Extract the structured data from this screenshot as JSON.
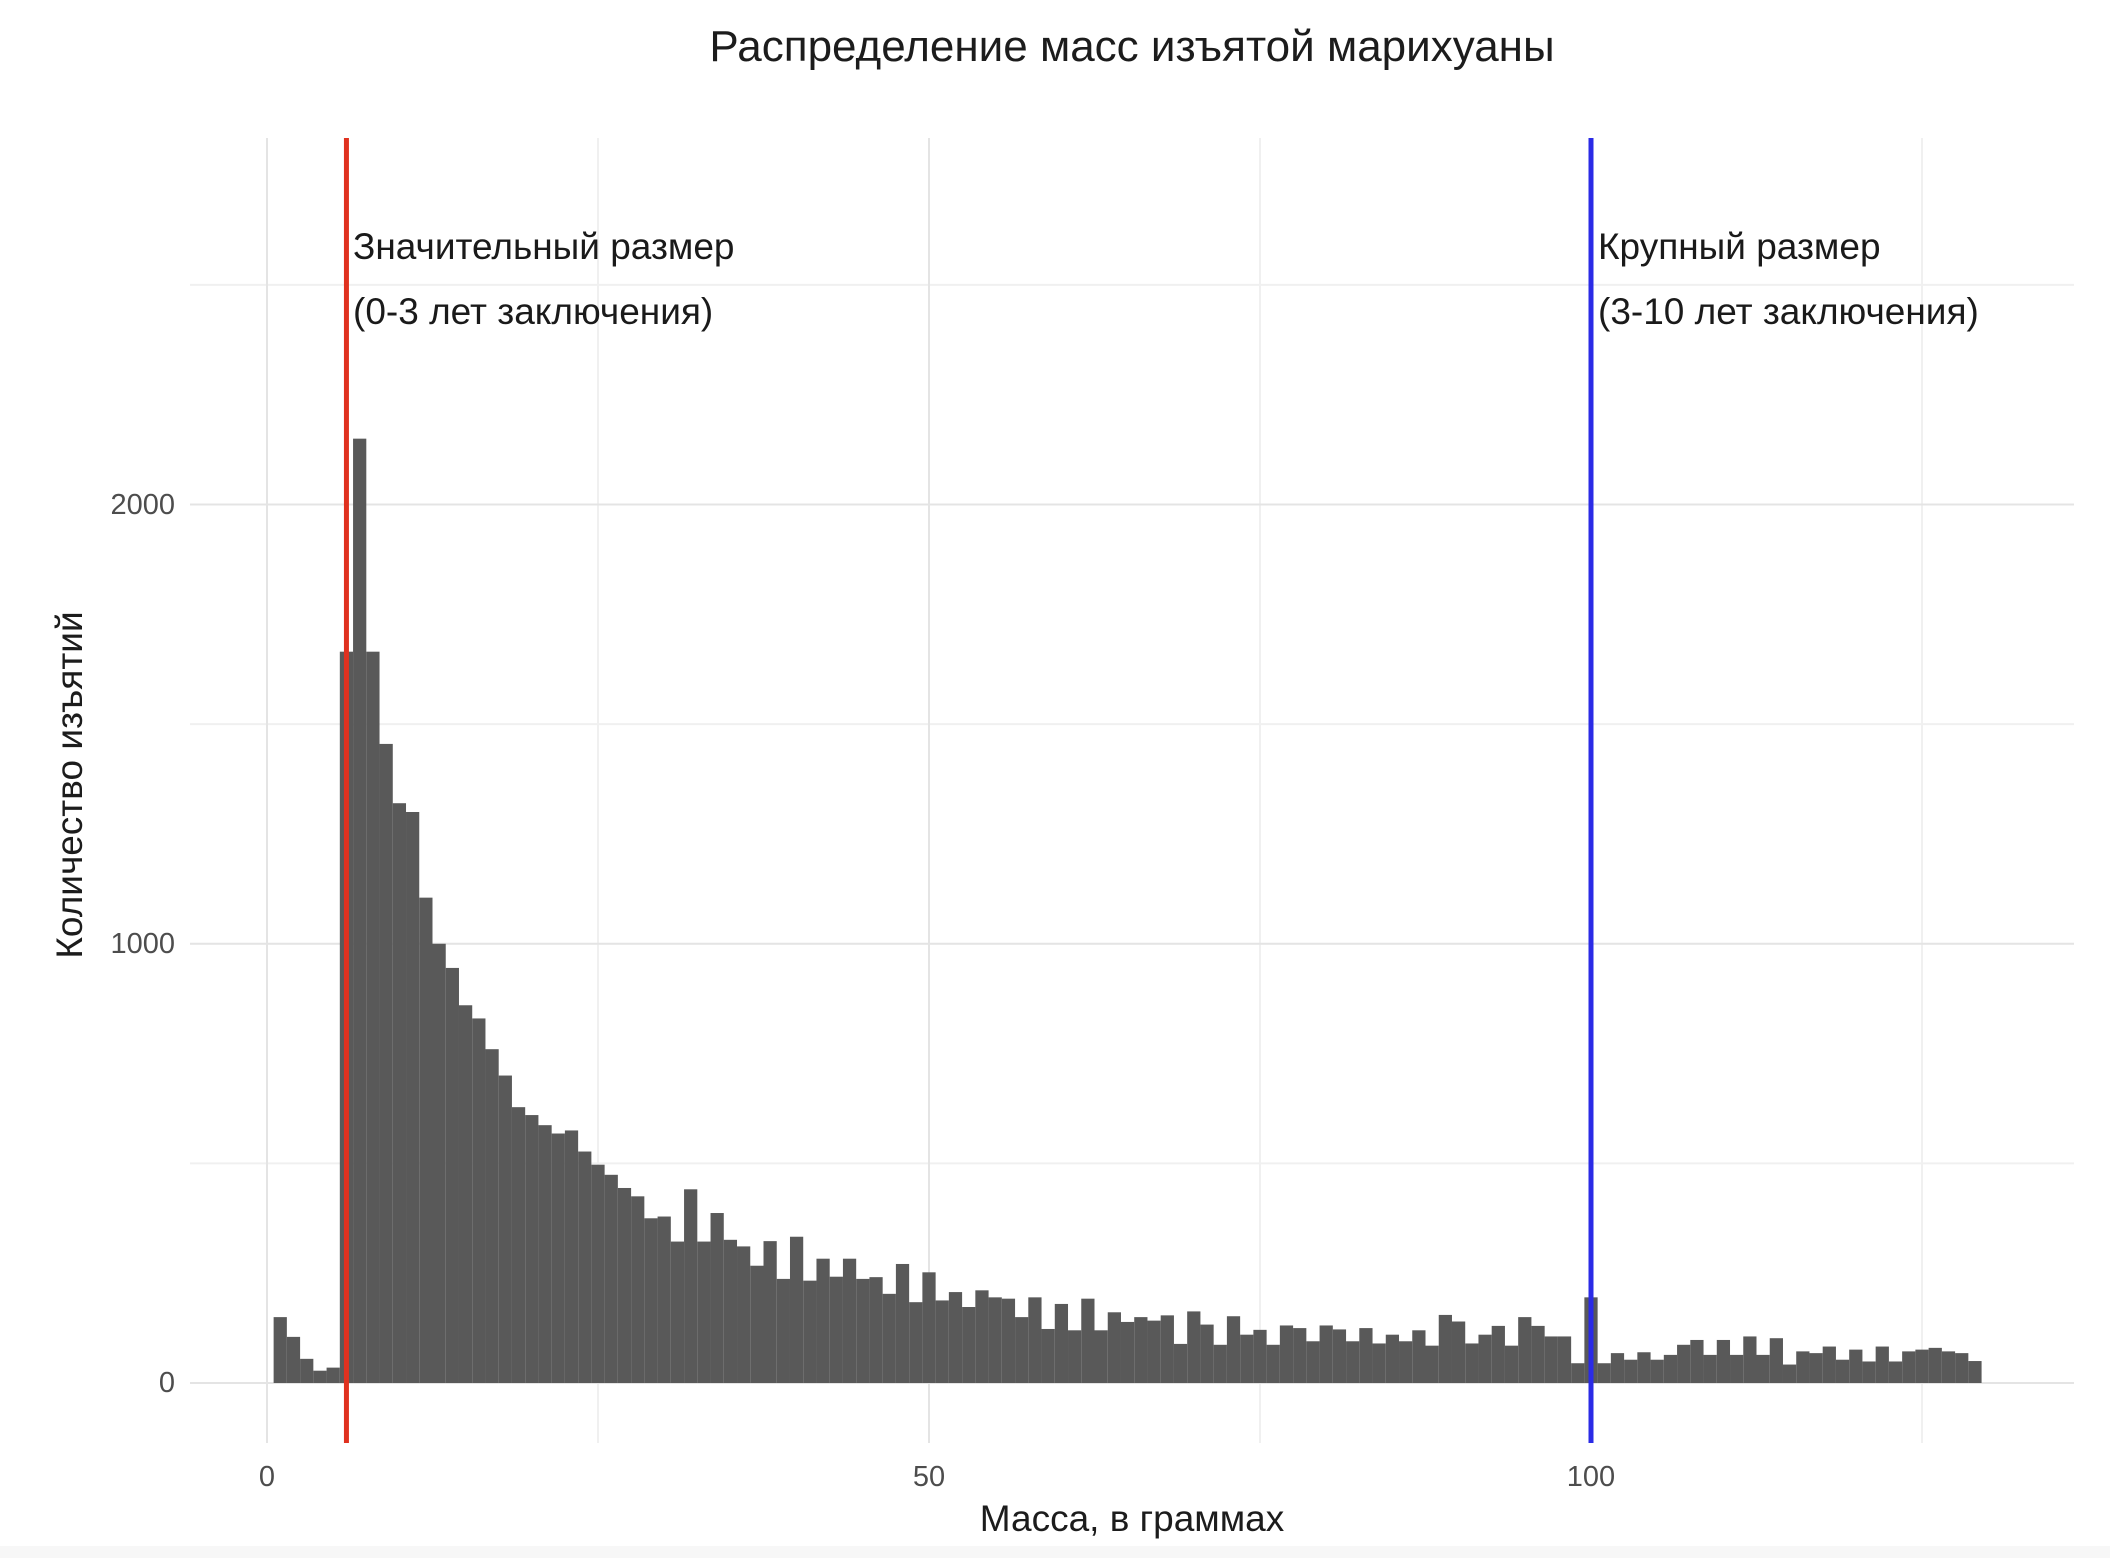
{
  "title": "Распределение масс изъятой марихуаны",
  "axes": {
    "x": {
      "label": "Масса, в граммах",
      "tick_labels": [
        "0",
        "50",
        "100"
      ]
    },
    "y": {
      "label": "Количество изъятий",
      "tick_labels": [
        "0",
        "1000",
        "2000"
      ]
    }
  },
  "annotations": {
    "significant": {
      "line1": "Значительный размер",
      "line2": "(0-3 лет заключения)",
      "threshold_grams": 6,
      "line_color": "#e0311f"
    },
    "large": {
      "line1": "Крупный размер",
      "line2": "(3-10 лет заключения)",
      "threshold_grams": 100,
      "line_color": "#2b2be6"
    }
  },
  "colors": {
    "bar_fill": "#595959",
    "major_grid": "#e4e4e4",
    "minor_grid": "#f0f0f0",
    "background": "#ffffff",
    "red_line": "#e0311f",
    "blue_line": "#2b2be6"
  },
  "chart_data": {
    "type": "bar",
    "subtype": "histogram",
    "title": "Распределение масс изъятой марихуаны",
    "xlabel": "Масса, в граммах",
    "ylabel": "Количество изъятий",
    "bin_width": 1,
    "first_bin_center": 1,
    "bin_centers_note": "bins centered on integer grams 1..129",
    "values": [
      150,
      105,
      55,
      28,
      35,
      1665,
      2150,
      1665,
      1455,
      1320,
      1300,
      1105,
      1000,
      945,
      860,
      830,
      760,
      700,
      628,
      610,
      587,
      568,
      575,
      527,
      497,
      474,
      444,
      425,
      375,
      379,
      322,
      441,
      322,
      387,
      326,
      311,
      267,
      323,
      237,
      333,
      233,
      283,
      242,
      283,
      237,
      241,
      203,
      271,
      184,
      252,
      188,
      207,
      173,
      211,
      195,
      192,
      150,
      195,
      123,
      180,
      120,
      192,
      120,
      161,
      139,
      150,
      142,
      154,
      89,
      163,
      133,
      87,
      152,
      110,
      121,
      87,
      131,
      125,
      95,
      131,
      122,
      95,
      125,
      90,
      110,
      95,
      120,
      85,
      155,
      140,
      90,
      110,
      130,
      85,
      150,
      130,
      106,
      106,
      45,
      195,
      45,
      68,
      53,
      70,
      53,
      64,
      87,
      98,
      64,
      98,
      64,
      106,
      64,
      102,
      42,
      72,
      68,
      83,
      53,
      76,
      49,
      83,
      49,
      72,
      76,
      80,
      72,
      68,
      50
    ],
    "x_ticks": [
      0,
      50,
      100
    ],
    "x_minor_ticks": [
      25,
      75,
      125
    ],
    "y_ticks": [
      0,
      1000,
      2000
    ],
    "y_minor_ticks": [
      500,
      1500,
      2500
    ],
    "xlim": [
      -5.8,
      136.5
    ],
    "ylim": [
      -137,
      2835
    ],
    "grid": true,
    "legend": "none",
    "vlines": [
      {
        "x": 6,
        "color": "#e0311f",
        "name": "significant-threshold-line"
      },
      {
        "x": 100,
        "color": "#2b2be6",
        "name": "large-threshold-line"
      }
    ]
  }
}
